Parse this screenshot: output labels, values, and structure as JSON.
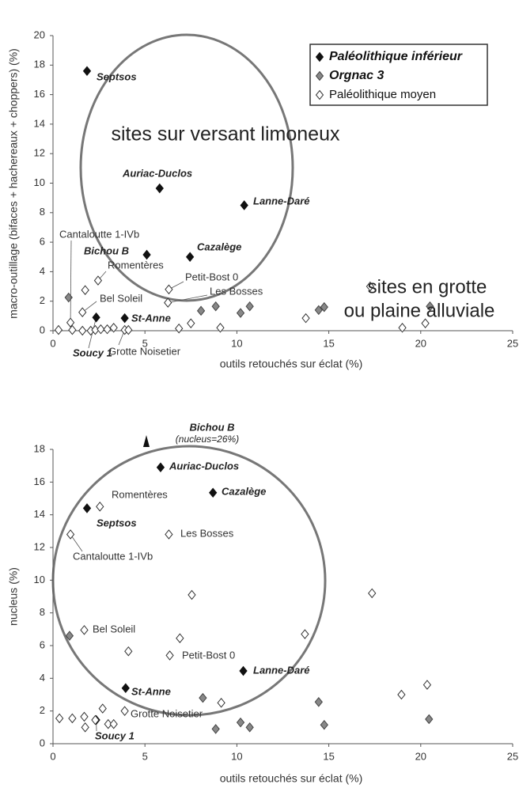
{
  "chart_data": [
    {
      "type": "scatter",
      "xlabel": "outils retouchés sur éclat (%)",
      "ylabel": "macro-outillage (bifaces + hachereaux + choppers) (%)",
      "xlim": [
        0,
        25
      ],
      "xticks": [
        0,
        5,
        10,
        15,
        20,
        25
      ],
      "ylim": [
        0,
        20
      ],
      "yticks": [
        0,
        2,
        4,
        6,
        8,
        10,
        12,
        14,
        16,
        18,
        20
      ],
      "legend": "upper right",
      "annotations": [
        "sites sur versant limoneux",
        "sites en grotte",
        "ou plaine alluviale"
      ],
      "series": [
        {
          "name": "Paléolithique inférieur",
          "color": "#111111",
          "x": [
            1.85,
            5.8,
            10.4,
            7.45,
            5.1,
            3.9,
            2.35
          ],
          "values": [
            17.6,
            9.65,
            8.5,
            5.0,
            5.15,
            0.85,
            0.9
          ],
          "labels": [
            "Septsos",
            "Auriac-Duclos",
            "Lanne-Daré",
            "Cazalège",
            "Bichou B",
            "St-Anne",
            "Soucy 1"
          ]
        },
        {
          "name": "Orgnac 3",
          "color": "#888888",
          "x": [
            0.85,
            8.05,
            8.85,
            10.2,
            10.7,
            14.45,
            14.75,
            20.5
          ],
          "values": [
            2.25,
            1.35,
            1.65,
            1.2,
            1.65,
            1.4,
            1.6,
            1.65
          ]
        },
        {
          "name": "Paléolithique moyen",
          "color": "#ffffff",
          "x": [
            0.3,
            0.95,
            1.05,
            1.6,
            1.6,
            1.75,
            2.05,
            2.45,
            2.3,
            2.6,
            2.95,
            3.3,
            3.9,
            4.1,
            6.3,
            6.25,
            6.85,
            7.5,
            9.1,
            13.75,
            17.25,
            19,
            20.25
          ],
          "values": [
            0.05,
            0.55,
            0.05,
            0,
            1.25,
            2.75,
            0,
            3.4,
            0.05,
            0.1,
            0.1,
            0.2,
            0.05,
            0.05,
            2.8,
            1.9,
            0.15,
            0.5,
            0.2,
            0.85,
            3.0,
            0.2,
            0.5
          ],
          "labels": [
            null,
            "Cantaloutte 1-IVb",
            null,
            null,
            "Bel Soleil",
            null,
            null,
            "Romentères",
            null,
            null,
            null,
            null,
            "Grotte Noisetier",
            null,
            "Petit-Bost 0",
            "Les Bosses",
            null,
            null,
            null,
            null,
            null,
            null,
            null
          ]
        }
      ]
    },
    {
      "type": "scatter",
      "xlabel": "outils retouchés sur éclat (%)",
      "ylabel": "nucleus (%)",
      "xlim": [
        0,
        25
      ],
      "xticks": [
        0,
        5,
        10,
        15,
        20,
        25
      ],
      "ylim": [
        0,
        18
      ],
      "yticks": [
        0,
        2,
        4,
        6,
        8,
        10,
        12,
        14,
        16,
        18
      ],
      "annotations": [
        "Bichou B",
        "(nucleus=26%)"
      ],
      "series": [
        {
          "color": "#111111",
          "x": [
            5.85,
            8.7,
            1.85,
            10.35,
            3.95,
            2.35
          ],
          "values": [
            16.9,
            15.35,
            14.4,
            4.45,
            3.4,
            1.45
          ],
          "labels": [
            "Auriac-Duclos",
            "Cazalège",
            "Septsos",
            "Lanne-Daré",
            "St-Anne",
            "Soucy 1"
          ]
        },
        {
          "color": "#888888",
          "x": [
            0.9,
            8.15,
            8.85,
            10.2,
            10.7,
            14.45,
            14.75,
            20.45
          ],
          "values": [
            6.6,
            2.8,
            0.9,
            1.3,
            1.0,
            2.55,
            1.15,
            1.5
          ]
        },
        {
          "color": "#ffffff",
          "x": [
            2.55,
            6.3,
            0.95,
            7.55,
            17.35,
            1.7,
            4.1,
            6.9,
            6.35,
            13.7,
            20.35,
            18.95,
            9.15,
            2.7,
            3.9,
            0.35,
            1.05,
            1.7,
            1.75,
            2.3,
            3.0,
            3.3
          ],
          "values": [
            14.5,
            12.8,
            12.8,
            9.1,
            9.2,
            6.95,
            5.65,
            6.45,
            5.4,
            6.7,
            3.6,
            3.0,
            2.5,
            2.15,
            2.0,
            1.55,
            1.55,
            1.65,
            1.0,
            1.45,
            1.2,
            1.2
          ],
          "labels": [
            "Romentères",
            "Les Bosses",
            "Cantaloutte 1-IVb",
            null,
            null,
            "Bel Soleil",
            null,
            null,
            "Petit-Bost 0",
            null,
            null,
            null,
            null,
            null,
            "Grotte Noisetier",
            null,
            null,
            null,
            null,
            null,
            null,
            null
          ]
        }
      ]
    }
  ]
}
